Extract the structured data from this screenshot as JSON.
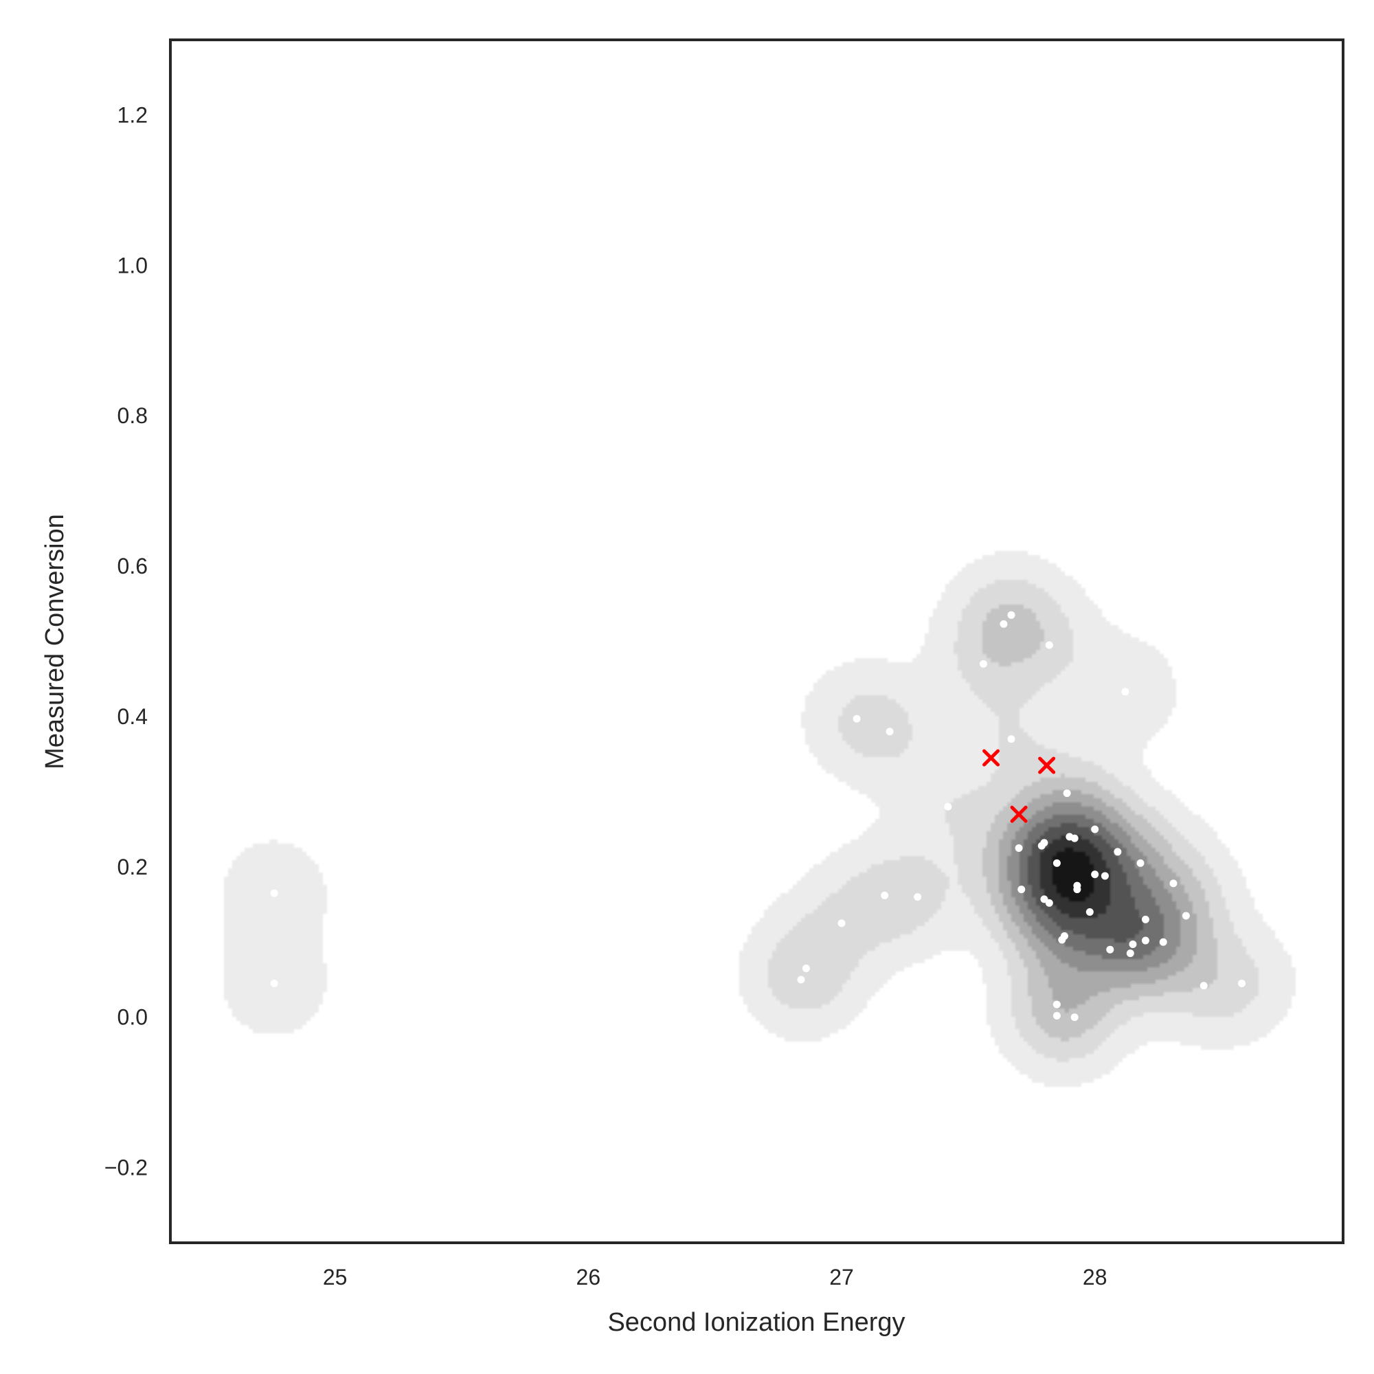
{
  "chart_data": {
    "type": "scatter",
    "title": "",
    "xlabel": "Second Ionization Energy",
    "ylabel": "Measured Conversion",
    "xlim": [
      24.35,
      28.98
    ],
    "ylim": [
      -0.3,
      1.3
    ],
    "xticks": [
      25,
      26,
      27,
      28
    ],
    "yticks": [
      -0.2,
      0.0,
      0.2,
      0.4,
      0.6,
      0.8,
      1.0,
      1.2
    ],
    "grid": false,
    "background_density": "grayscale filled KDE contours of the points",
    "colors": {
      "points": "#ffffff",
      "markers": "#ff0000",
      "axes": "#262626"
    },
    "series": [
      {
        "marker": "dot",
        "points": [
          [
            24.76,
            0.165
          ],
          [
            24.76,
            0.045
          ],
          [
            26.84,
            0.05
          ],
          [
            26.86,
            0.065
          ],
          [
            27.0,
            0.125
          ],
          [
            27.06,
            0.397
          ],
          [
            27.17,
            0.162
          ],
          [
            27.19,
            0.38
          ],
          [
            27.3,
            0.16
          ],
          [
            27.42,
            0.28
          ],
          [
            27.56,
            0.47
          ],
          [
            27.64,
            0.523
          ],
          [
            27.67,
            0.535
          ],
          [
            27.67,
            0.37
          ],
          [
            27.7,
            0.225
          ],
          [
            27.71,
            0.17
          ],
          [
            27.79,
            0.228
          ],
          [
            27.8,
            0.232
          ],
          [
            27.8,
            0.157
          ],
          [
            27.82,
            0.152
          ],
          [
            27.82,
            0.495
          ],
          [
            27.85,
            0.205
          ],
          [
            27.85,
            0.017
          ],
          [
            27.85,
            0.002
          ],
          [
            27.87,
            0.103
          ],
          [
            27.88,
            0.108
          ],
          [
            27.89,
            0.298
          ],
          [
            27.9,
            0.24
          ],
          [
            27.92,
            0.238
          ],
          [
            27.92,
            0.0
          ],
          [
            27.93,
            0.17
          ],
          [
            27.93,
            0.175
          ],
          [
            27.98,
            0.14
          ],
          [
            28.0,
            0.25
          ],
          [
            28.0,
            0.19
          ],
          [
            28.04,
            0.188
          ],
          [
            28.06,
            0.09
          ],
          [
            28.09,
            0.22
          ],
          [
            28.14,
            0.085
          ],
          [
            28.15,
            0.097
          ],
          [
            28.18,
            0.205
          ],
          [
            28.2,
            0.13
          ],
          [
            28.2,
            0.102
          ],
          [
            28.27,
            0.1
          ],
          [
            28.31,
            0.178
          ],
          [
            28.36,
            0.135
          ],
          [
            28.43,
            0.042
          ],
          [
            28.58,
            0.045
          ],
          [
            28.12,
            0.433
          ]
        ]
      },
      {
        "marker": "x",
        "points": [
          [
            27.59,
            0.345
          ],
          [
            27.7,
            0.27
          ],
          [
            27.81,
            0.335
          ]
        ]
      }
    ]
  }
}
